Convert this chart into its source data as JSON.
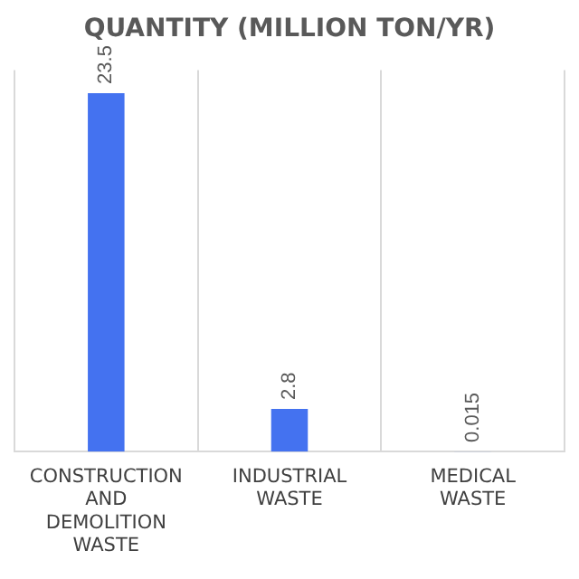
{
  "chart_data": {
    "type": "bar",
    "title": "QUANTITY (MILLION TON/YR)",
    "categories": [
      "CONSTRUCTION AND DEMOLITION WASTE",
      "INDUSTRIAL WASTE",
      "MEDICAL WASTE"
    ],
    "values": [
      23.5,
      2.8,
      0.015
    ],
    "color": "#4472f0",
    "data_labels": true,
    "grid": "x",
    "legend": false
  }
}
